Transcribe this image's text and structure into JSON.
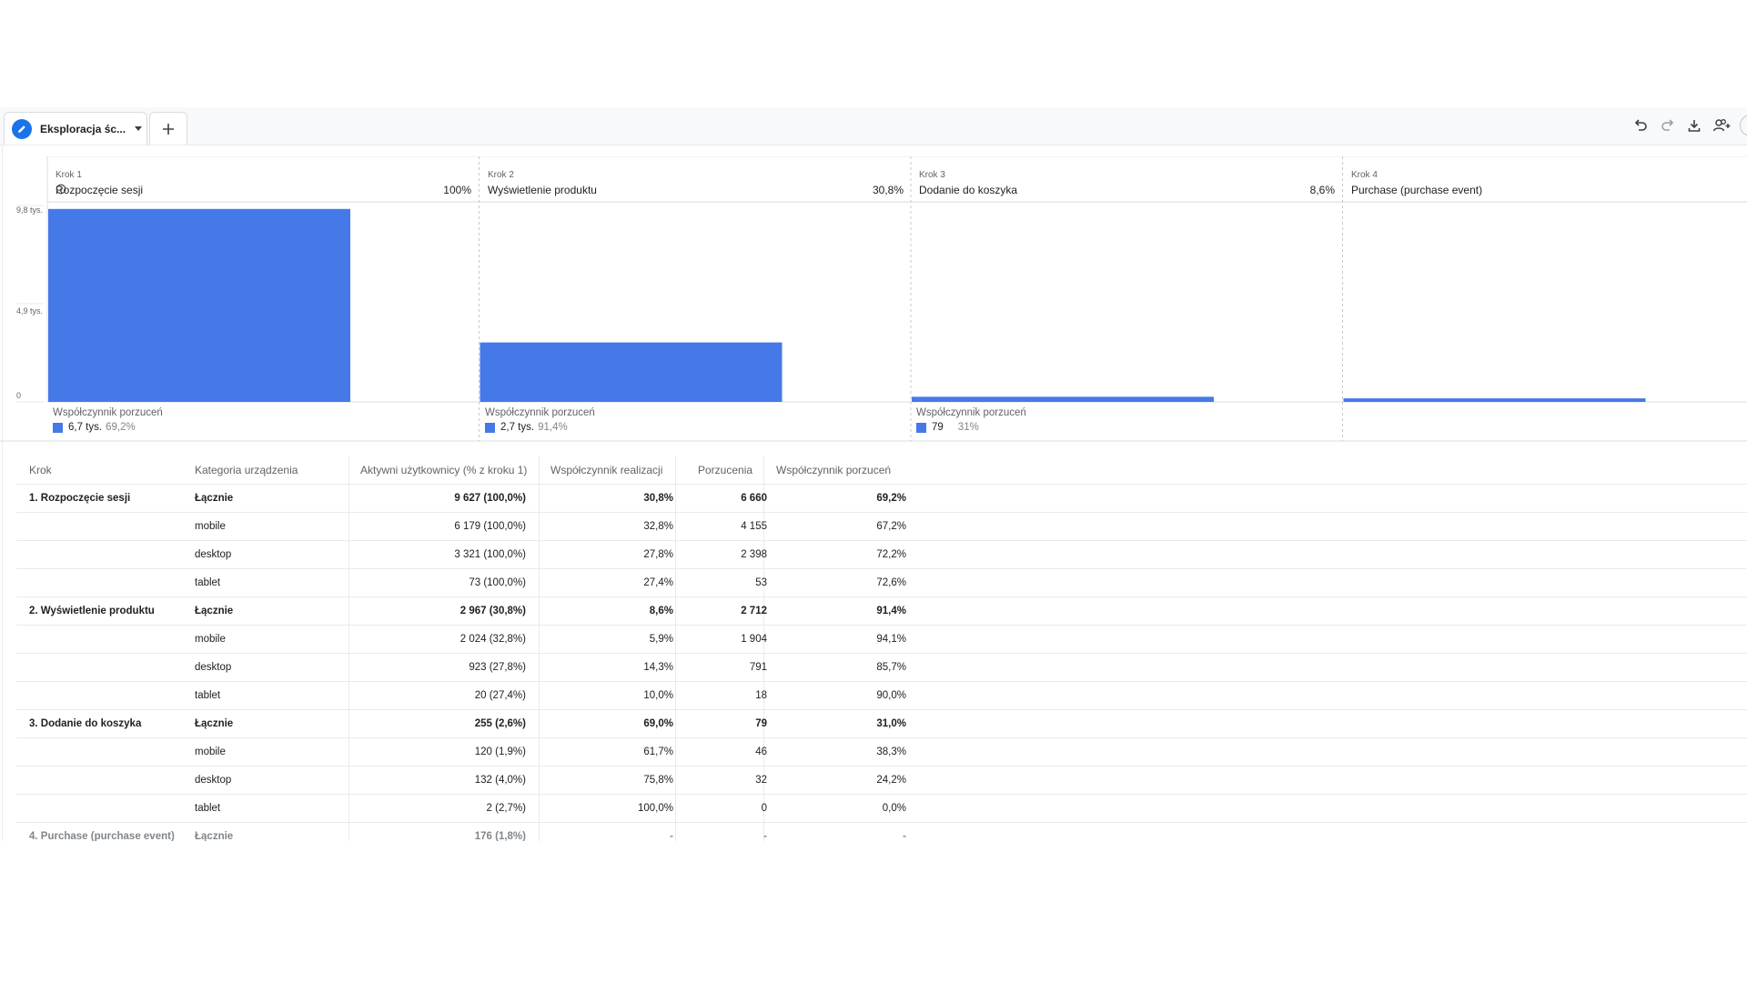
{
  "tab": {
    "label": "Eksploracja śc...",
    "icon": "pencil-icon"
  },
  "toolbar": [
    "undo-icon",
    "redo-icon",
    "download-icon",
    "share-user-icon"
  ],
  "chart_data": {
    "type": "bar",
    "categories": [
      "Rozpoczęcie sesji",
      "Wyświetlenie produktu",
      "Dodanie do koszyka",
      "Purchase (purchase event)"
    ],
    "values": [
      9627,
      2967,
      255,
      176
    ],
    "ylim": [
      0,
      9800
    ],
    "y_tick_values": [
      0,
      4900,
      9800
    ],
    "y_tick_labels": [
      "0",
      "4,9 tys.",
      "9,8 tys."
    ],
    "bar_color": "#4679e8",
    "grid": false
  },
  "steps": [
    {
      "kicker": "Krok 1",
      "name": "Rozpoczęcie sesji",
      "pct": "100%",
      "drop_label": "Współczynnik porzuceń",
      "drop_value": "6,7 tys.",
      "drop_rate": "69,2%"
    },
    {
      "kicker": "Krok 2",
      "name": "Wyświetlenie produktu",
      "pct": "30,8%",
      "drop_label": "Współczynnik porzuceń",
      "drop_value": "2,7 tys.",
      "drop_rate": "91,4%"
    },
    {
      "kicker": "Krok 3",
      "name": "Dodanie do koszyka",
      "pct": "8,6%",
      "drop_label": "Współczynnik porzuceń",
      "drop_value": "79",
      "drop_rate": "31%"
    },
    {
      "kicker": "Krok 4",
      "name": "Purchase (purchase event)",
      "pct": "",
      "drop_label": "",
      "drop_value": "",
      "drop_rate": ""
    }
  ],
  "table": {
    "headers": [
      "Krok",
      "Kategoria urządzenia",
      "Aktywni użytkownicy (% z kroku 1)",
      "Współczynnik realizacji",
      "Porzucenia",
      "Współczynnik porzuceń"
    ],
    "rows": [
      {
        "step": "1. Rozpoczęcie sesji",
        "device": "Łącznie",
        "active": "9 627 (100,0%)",
        "completion": "30,8%",
        "dropoffs": "6 660",
        "droprate": "69,2%",
        "total": true
      },
      {
        "step": "",
        "device": "mobile",
        "active": "6 179 (100,0%)",
        "completion": "32,8%",
        "dropoffs": "4 155",
        "droprate": "67,2%"
      },
      {
        "step": "",
        "device": "desktop",
        "active": "3 321 (100,0%)",
        "completion": "27,8%",
        "dropoffs": "2 398",
        "droprate": "72,2%"
      },
      {
        "step": "",
        "device": "tablet",
        "active": "73 (100,0%)",
        "completion": "27,4%",
        "dropoffs": "53",
        "droprate": "72,6%"
      },
      {
        "step": "2. Wyświetlenie produktu",
        "device": "Łącznie",
        "active": "2 967 (30,8%)",
        "completion": "8,6%",
        "dropoffs": "2 712",
        "droprate": "91,4%",
        "total": true
      },
      {
        "step": "",
        "device": "mobile",
        "active": "2 024 (32,8%)",
        "completion": "5,9%",
        "dropoffs": "1 904",
        "droprate": "94,1%"
      },
      {
        "step": "",
        "device": "desktop",
        "active": "923 (27,8%)",
        "completion": "14,3%",
        "dropoffs": "791",
        "droprate": "85,7%"
      },
      {
        "step": "",
        "device": "tablet",
        "active": "20 (27,4%)",
        "completion": "10,0%",
        "dropoffs": "18",
        "droprate": "90,0%"
      },
      {
        "step": "3. Dodanie do koszyka",
        "device": "Łącznie",
        "active": "255 (2,6%)",
        "completion": "69,0%",
        "dropoffs": "79",
        "droprate": "31,0%",
        "total": true
      },
      {
        "step": "",
        "device": "mobile",
        "active": "120 (1,9%)",
        "completion": "61,7%",
        "dropoffs": "46",
        "droprate": "38,3%"
      },
      {
        "step": "",
        "device": "desktop",
        "active": "132 (4,0%)",
        "completion": "75,8%",
        "dropoffs": "32",
        "droprate": "24,2%"
      },
      {
        "step": "",
        "device": "tablet",
        "active": "2 (2,7%)",
        "completion": "100,0%",
        "dropoffs": "0",
        "droprate": "0,0%"
      },
      {
        "step": "4. Purchase (purchase event)",
        "device": "Łącznie",
        "active": "176 (1,8%)",
        "completion": "-",
        "dropoffs": "-",
        "droprate": "-",
        "total": true,
        "faded": true
      }
    ]
  }
}
